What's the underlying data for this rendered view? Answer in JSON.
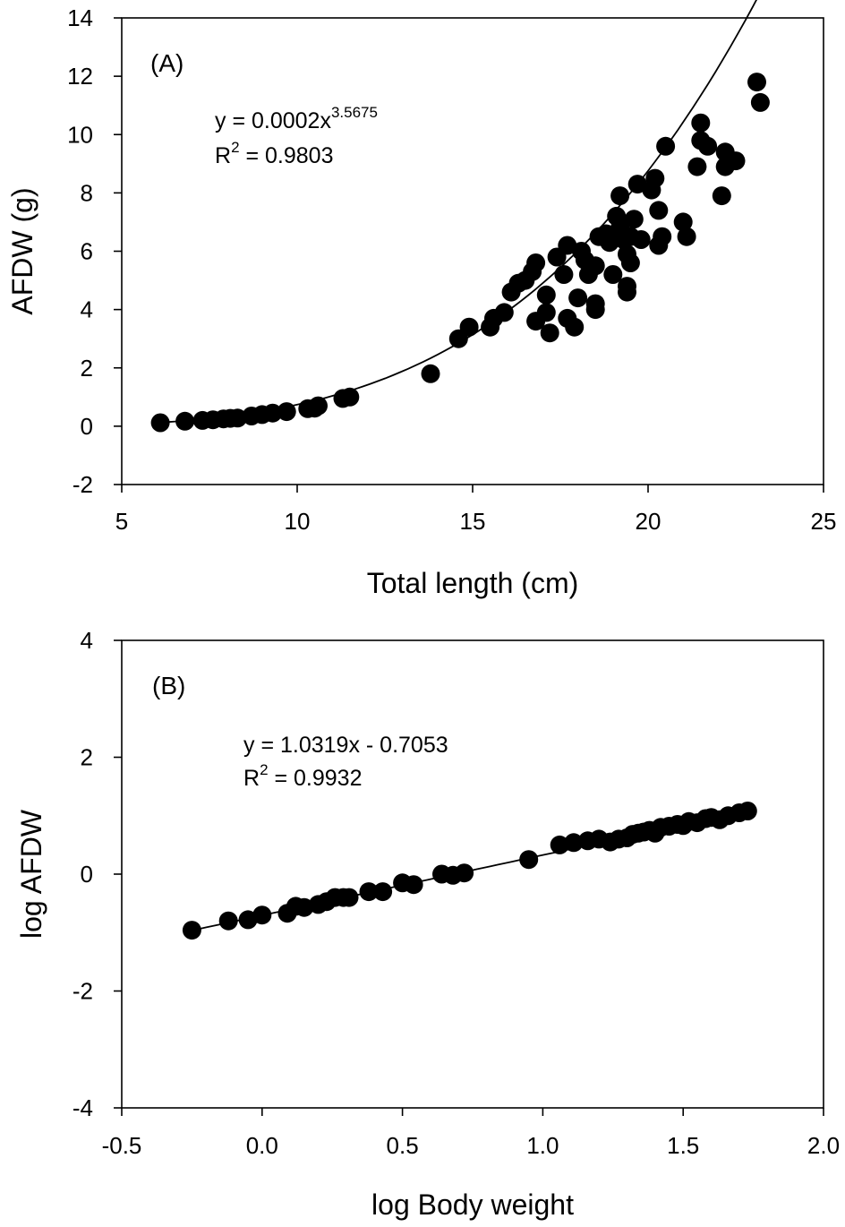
{
  "chart_data": [
    {
      "type": "scatter",
      "panel_label": "(A)",
      "xlabel": "Total length (cm)",
      "ylabel": "AFDW (g)",
      "xlim": [
        5,
        25
      ],
      "ylim": [
        -2,
        14
      ],
      "xticks": [
        5,
        10,
        15,
        20,
        25
      ],
      "yticks": [
        -2,
        0,
        2,
        4,
        6,
        8,
        10,
        12,
        14
      ],
      "equation": {
        "prefix": "y = 0.0002x",
        "exponent": "3.5675"
      },
      "r_squared": {
        "r": "R",
        "sup": "2",
        "value": " = 0.9803"
      },
      "fit": {
        "type": "power",
        "a": 0.0002,
        "b": 3.5675,
        "x_range": [
          6.1,
          23.2
        ]
      },
      "points": [
        [
          6.1,
          0.12
        ],
        [
          6.8,
          0.17
        ],
        [
          7.3,
          0.2
        ],
        [
          7.6,
          0.22
        ],
        [
          7.9,
          0.25
        ],
        [
          8.1,
          0.27
        ],
        [
          8.3,
          0.28
        ],
        [
          8.7,
          0.35
        ],
        [
          9.0,
          0.4
        ],
        [
          9.3,
          0.45
        ],
        [
          9.7,
          0.5
        ],
        [
          10.3,
          0.6
        ],
        [
          10.5,
          0.62
        ],
        [
          10.6,
          0.7
        ],
        [
          11.3,
          0.95
        ],
        [
          11.5,
          1.0
        ],
        [
          13.8,
          1.8
        ],
        [
          14.6,
          3.0
        ],
        [
          14.9,
          3.4
        ],
        [
          15.5,
          3.4
        ],
        [
          15.6,
          3.7
        ],
        [
          15.9,
          3.9
        ],
        [
          16.1,
          4.6
        ],
        [
          16.3,
          4.9
        ],
        [
          16.5,
          5.0
        ],
        [
          16.7,
          5.3
        ],
        [
          16.8,
          5.6
        ],
        [
          16.8,
          3.6
        ],
        [
          17.1,
          4.5
        ],
        [
          17.1,
          3.9
        ],
        [
          17.2,
          3.2
        ],
        [
          17.4,
          5.8
        ],
        [
          17.6,
          5.2
        ],
        [
          17.7,
          6.2
        ],
        [
          17.7,
          3.7
        ],
        [
          17.9,
          3.4
        ],
        [
          18.0,
          4.4
        ],
        [
          18.1,
          6.0
        ],
        [
          18.2,
          5.7
        ],
        [
          18.3,
          5.2
        ],
        [
          18.5,
          5.5
        ],
        [
          18.5,
          4.2
        ],
        [
          18.5,
          4.0
        ],
        [
          18.6,
          6.5
        ],
        [
          18.8,
          6.6
        ],
        [
          18.9,
          6.3
        ],
        [
          19.0,
          5.2
        ],
        [
          19.1,
          7.2
        ],
        [
          19.2,
          7.9
        ],
        [
          19.2,
          6.8
        ],
        [
          19.3,
          6.4
        ],
        [
          19.4,
          5.9
        ],
        [
          19.4,
          4.8
        ],
        [
          19.4,
          4.6
        ],
        [
          19.5,
          5.6
        ],
        [
          19.5,
          6.5
        ],
        [
          19.6,
          7.1
        ],
        [
          19.7,
          8.3
        ],
        [
          19.8,
          6.4
        ],
        [
          20.1,
          8.1
        ],
        [
          20.2,
          8.5
        ],
        [
          20.3,
          7.4
        ],
        [
          20.3,
          6.2
        ],
        [
          20.4,
          6.5
        ],
        [
          20.5,
          9.6
        ],
        [
          21.0,
          7.0
        ],
        [
          21.1,
          6.5
        ],
        [
          21.4,
          8.9
        ],
        [
          21.5,
          10.4
        ],
        [
          21.5,
          9.8
        ],
        [
          21.7,
          9.6
        ],
        [
          22.1,
          7.9
        ],
        [
          22.2,
          9.4
        ],
        [
          22.2,
          8.9
        ],
        [
          22.5,
          9.1
        ],
        [
          23.1,
          11.8
        ],
        [
          23.2,
          11.1
        ]
      ]
    },
    {
      "type": "scatter",
      "panel_label": "(B)",
      "xlabel": "log Body weight",
      "ylabel": "log AFDW",
      "xlim": [
        -0.5,
        2.0
      ],
      "ylim": [
        -4,
        4
      ],
      "xticks": [
        "-0.5",
        "0.0",
        "0.5",
        "1.0",
        "1.5",
        "2.0"
      ],
      "yticks": [
        -4,
        -2,
        0,
        2,
        4
      ],
      "equation": {
        "prefix": "y = 1.0319x - 0.7053",
        "exponent": ""
      },
      "r_squared": {
        "r": "R",
        "sup": "2",
        "value": " = 0.9932"
      },
      "fit": {
        "type": "linear",
        "slope": 1.0319,
        "intercept": -0.7053,
        "x_range": [
          -0.25,
          1.73
        ]
      },
      "points": [
        [
          -0.25,
          -0.96
        ],
        [
          -0.12,
          -0.8
        ],
        [
          -0.05,
          -0.78
        ],
        [
          0.0,
          -0.7
        ],
        [
          0.09,
          -0.67
        ],
        [
          0.12,
          -0.55
        ],
        [
          0.15,
          -0.57
        ],
        [
          0.2,
          -0.52
        ],
        [
          0.23,
          -0.47
        ],
        [
          0.26,
          -0.4
        ],
        [
          0.29,
          -0.4
        ],
        [
          0.31,
          -0.4
        ],
        [
          0.38,
          -0.3
        ],
        [
          0.43,
          -0.3
        ],
        [
          0.5,
          -0.15
        ],
        [
          0.54,
          -0.18
        ],
        [
          0.64,
          0.0
        ],
        [
          0.68,
          -0.02
        ],
        [
          0.72,
          0.02
        ],
        [
          0.95,
          0.25
        ],
        [
          1.06,
          0.5
        ],
        [
          1.11,
          0.54
        ],
        [
          1.16,
          0.57
        ],
        [
          1.2,
          0.6
        ],
        [
          1.24,
          0.55
        ],
        [
          1.27,
          0.6
        ],
        [
          1.3,
          0.62
        ],
        [
          1.32,
          0.68
        ],
        [
          1.34,
          0.7
        ],
        [
          1.36,
          0.72
        ],
        [
          1.38,
          0.75
        ],
        [
          1.4,
          0.7
        ],
        [
          1.42,
          0.8
        ],
        [
          1.45,
          0.82
        ],
        [
          1.48,
          0.85
        ],
        [
          1.5,
          0.83
        ],
        [
          1.52,
          0.9
        ],
        [
          1.55,
          0.88
        ],
        [
          1.58,
          0.95
        ],
        [
          1.6,
          0.97
        ],
        [
          1.63,
          0.93
        ],
        [
          1.66,
          1.0
        ],
        [
          1.7,
          1.05
        ],
        [
          1.73,
          1.08
        ]
      ]
    }
  ]
}
